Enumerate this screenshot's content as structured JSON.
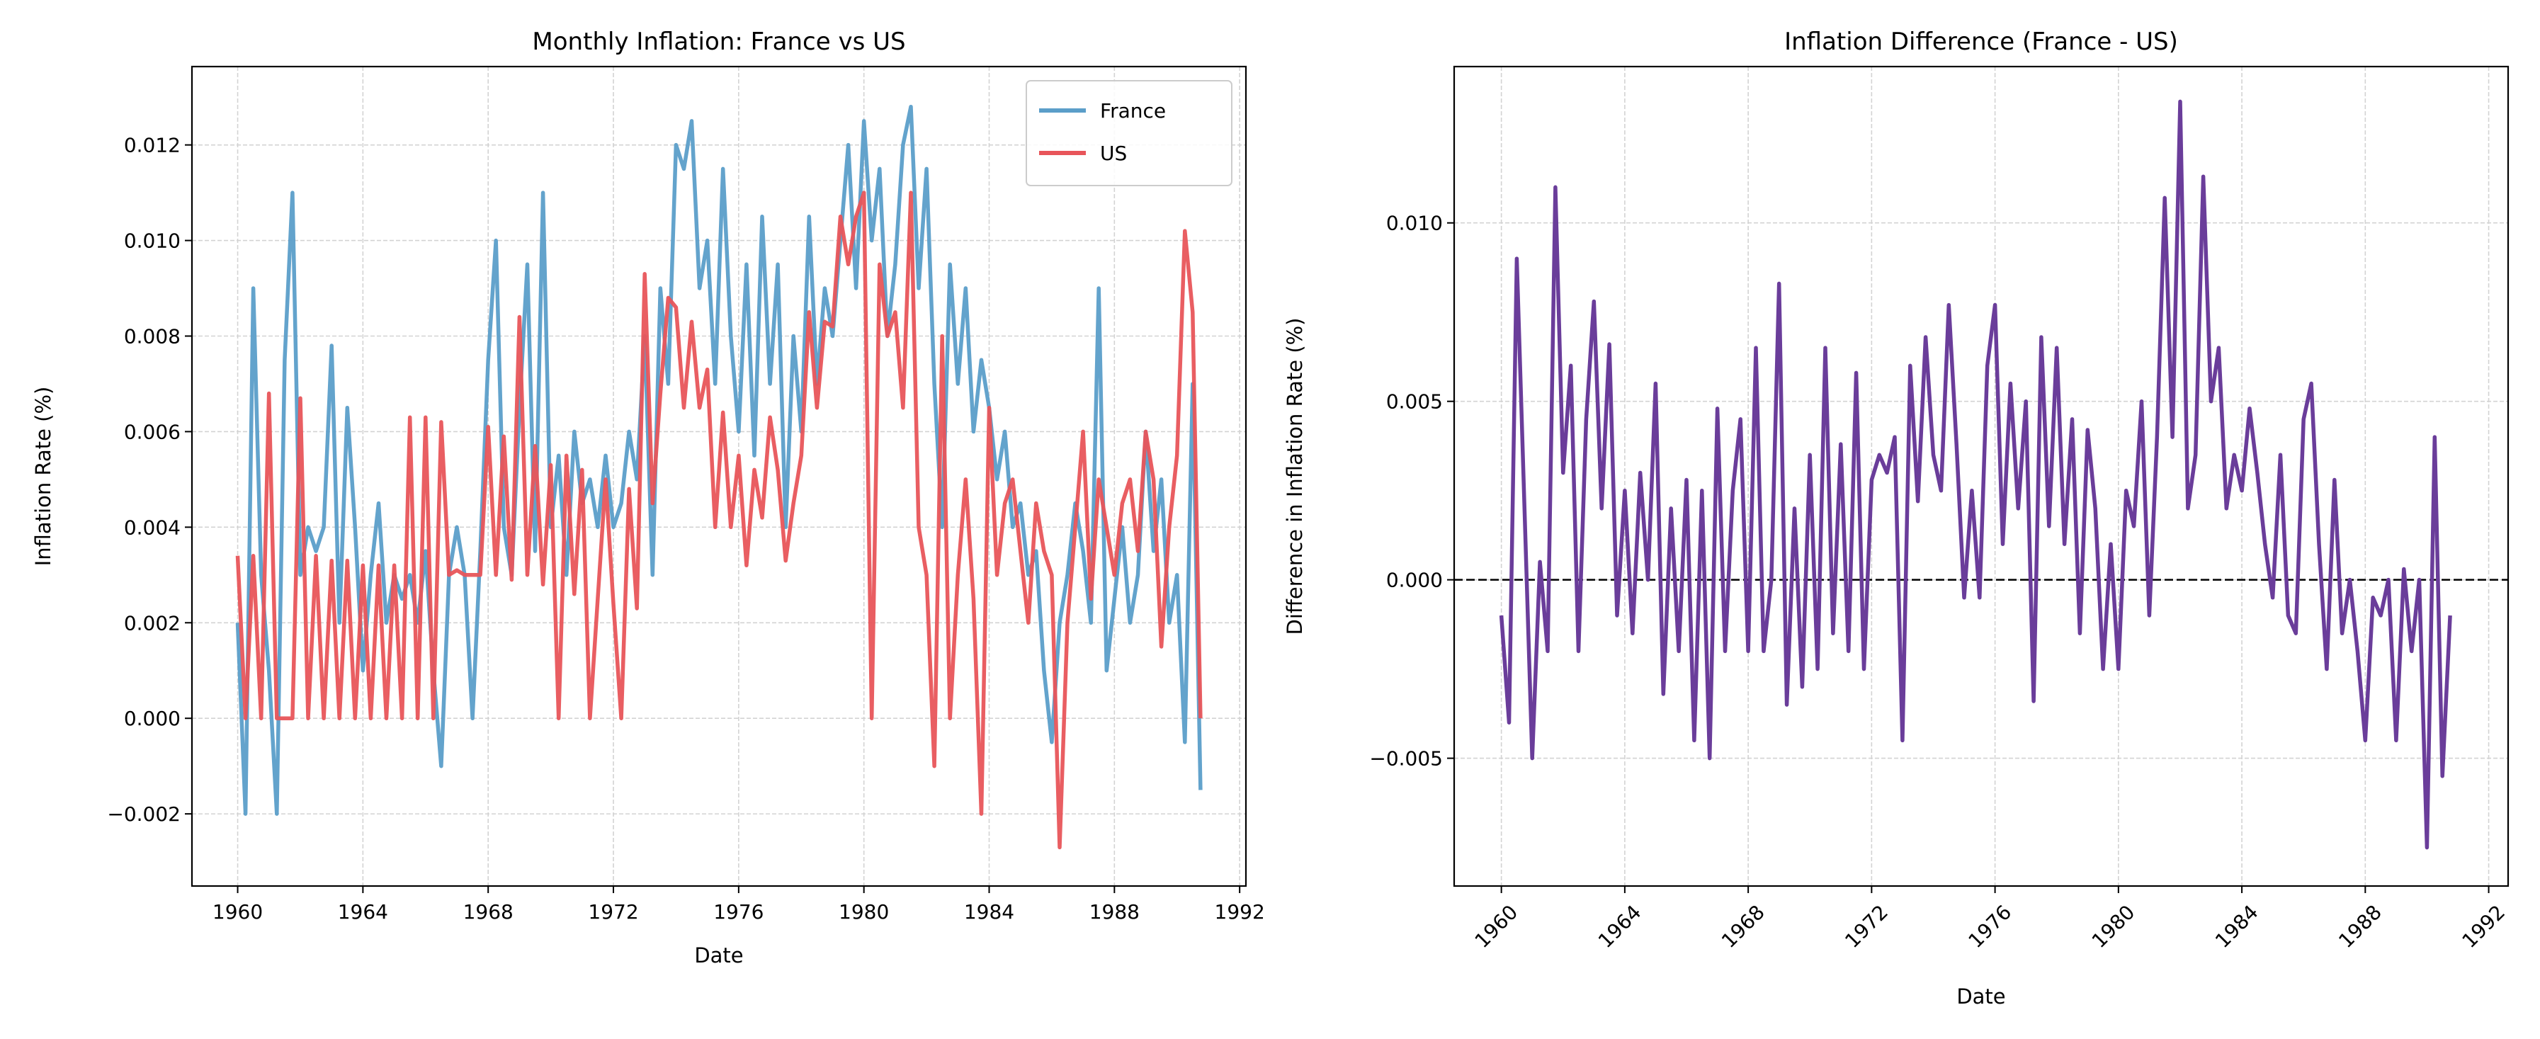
{
  "chart_data": [
    {
      "type": "line",
      "title": "Monthly Inflation: France vs US",
      "xlabel": "Date",
      "ylabel": "Inflation Rate (%)",
      "x": [
        1960,
        1960.25,
        1960.5,
        1960.75,
        1961,
        1961.25,
        1961.5,
        1961.75,
        1962,
        1962.25,
        1962.5,
        1962.75,
        1963,
        1963.25,
        1963.5,
        1963.75,
        1964,
        1964.25,
        1964.5,
        1964.75,
        1965,
        1965.25,
        1965.5,
        1965.75,
        1966,
        1966.25,
        1966.5,
        1966.75,
        1967,
        1967.25,
        1967.5,
        1967.75,
        1968,
        1968.25,
        1968.5,
        1968.75,
        1969,
        1969.25,
        1969.5,
        1969.75,
        1970,
        1970.25,
        1970.5,
        1970.75,
        1971,
        1971.25,
        1971.5,
        1971.75,
        1972,
        1972.25,
        1972.5,
        1972.75,
        1973,
        1973.25,
        1973.5,
        1973.75,
        1974,
        1974.25,
        1974.5,
        1974.75,
        1975,
        1975.25,
        1975.5,
        1975.75,
        1976,
        1976.25,
        1976.5,
        1976.75,
        1977,
        1977.25,
        1977.5,
        1977.75,
        1978,
        1978.25,
        1978.5,
        1978.75,
        1979,
        1979.25,
        1979.5,
        1979.75,
        1980,
        1980.25,
        1980.5,
        1980.75,
        1981,
        1981.25,
        1981.5,
        1981.75,
        1982,
        1982.25,
        1982.5,
        1982.75,
        1983,
        1983.25,
        1983.5,
        1983.75,
        1984,
        1984.25,
        1984.5,
        1984.75,
        1985,
        1985.25,
        1985.5,
        1985.75,
        1986,
        1986.25,
        1986.5,
        1986.75,
        1987,
        1987.25,
        1987.5,
        1987.75,
        1988,
        1988.25,
        1988.5,
        1988.75,
        1989,
        1989.25,
        1989.5,
        1989.75,
        1990,
        1990.25,
        1990.5,
        1990.75
      ],
      "series": [
        {
          "name": "France",
          "color": "#5b9ec9",
          "values": [
            0.002,
            -0.002,
            0.009,
            0.003,
            0.001,
            -0.002,
            0.0075,
            0.011,
            0.003,
            0.004,
            0.0035,
            0.004,
            0.0078,
            0.002,
            0.0065,
            0.004,
            0.001,
            0.003,
            0.0045,
            0.002,
            0.003,
            0.0025,
            0.003,
            0.002,
            0.0035,
            0.001,
            -0.001,
            0.003,
            0.004,
            0.003,
            0.0,
            0.0035,
            0.0075,
            0.01,
            0.004,
            0.003,
            0.0065,
            0.0095,
            0.0035,
            0.011,
            0.004,
            0.0055,
            0.003,
            0.006,
            0.0045,
            0.005,
            0.004,
            0.0055,
            0.004,
            0.0045,
            0.006,
            0.005,
            0.008,
            0.003,
            0.009,
            0.007,
            0.012,
            0.0115,
            0.0125,
            0.009,
            0.01,
            0.007,
            0.0115,
            0.008,
            0.006,
            0.0095,
            0.0055,
            0.0105,
            0.007,
            0.0095,
            0.004,
            0.008,
            0.006,
            0.0105,
            0.007,
            0.009,
            0.008,
            0.01,
            0.012,
            0.009,
            0.0125,
            0.01,
            0.0115,
            0.008,
            0.0095,
            0.012,
            0.0128,
            0.009,
            0.0115,
            0.007,
            0.004,
            0.0095,
            0.007,
            0.009,
            0.006,
            0.0075,
            0.0065,
            0.005,
            0.006,
            0.004,
            0.0045,
            0.003,
            0.0035,
            0.001,
            -0.0005,
            0.002,
            0.003,
            0.0045,
            0.0035,
            0.002,
            0.009,
            0.001,
            0.0025,
            0.004,
            0.002,
            0.003,
            0.006,
            0.0035,
            0.005,
            0.002,
            0.003,
            -0.0005,
            0.007,
            -0.0015
          ]
        },
        {
          "name": "US",
          "color": "#e8555a",
          "values": [
            0.0034,
            0.0,
            0.0034,
            0.0,
            0.0068,
            0.0,
            0.0,
            0.0,
            0.0067,
            0.0,
            0.0034,
            0.0,
            0.0033,
            0.0,
            0.0033,
            0.0,
            0.0032,
            0.0,
            0.0032,
            0.0,
            0.0032,
            0.0,
            0.0063,
            0.0,
            0.0063,
            0.0,
            0.0062,
            0.003,
            0.0031,
            0.003,
            0.003,
            0.003,
            0.0061,
            0.003,
            0.0059,
            0.0029,
            0.0084,
            0.003,
            0.0057,
            0.0028,
            0.0053,
            0.0,
            0.0055,
            0.0026,
            0.0052,
            0.0,
            0.0025,
            0.005,
            0.0024,
            0.0,
            0.0048,
            0.0023,
            0.0093,
            0.0045,
            0.0068,
            0.0088,
            0.0086,
            0.0065,
            0.0083,
            0.0065,
            0.0073,
            0.004,
            0.0064,
            0.004,
            0.0055,
            0.0032,
            0.0052,
            0.0042,
            0.0063,
            0.0052,
            0.0033,
            0.0045,
            0.0055,
            0.0085,
            0.0065,
            0.0083,
            0.0082,
            0.0105,
            0.0095,
            0.0105,
            0.011,
            0.0,
            0.0095,
            0.008,
            0.0085,
            0.0065,
            0.011,
            0.004,
            0.003,
            -0.001,
            0.008,
            0.0,
            0.003,
            0.005,
            0.0025,
            -0.002,
            0.0065,
            0.003,
            0.0045,
            0.005,
            0.0035,
            0.002,
            0.0045,
            0.0035,
            0.003,
            -0.0027,
            0.002,
            0.004,
            0.006,
            0.0025,
            0.005,
            0.004,
            0.003,
            0.0045,
            0.005,
            0.0035,
            0.006,
            0.005,
            0.0015,
            0.004,
            0.0055,
            0.0102,
            0.0085,
            0.0
          ]
        }
      ],
      "xlim": [
        1958.54,
        1992.2
      ],
      "ylim": [
        -0.00351,
        0.01364
      ],
      "xticks": [
        1960,
        1964,
        1968,
        1972,
        1976,
        1980,
        1984,
        1988,
        1992
      ],
      "yticks": [
        {
          "value": -0.002,
          "label": "−0.002"
        },
        {
          "value": 0,
          "label": "0.000"
        },
        {
          "value": 0.002,
          "label": "0.002"
        },
        {
          "value": 0.004,
          "label": "0.004"
        },
        {
          "value": 0.006,
          "label": "0.006"
        },
        {
          "value": 0.008,
          "label": "0.008"
        },
        {
          "value": 0.01,
          "label": "0.010"
        },
        {
          "value": 0.012,
          "label": "0.012"
        }
      ],
      "grid": true,
      "legend": "upper right"
    },
    {
      "type": "line",
      "title": "Inflation Difference (France - US)",
      "xlabel": "Date",
      "ylabel": "Difference in Inflation Rate (%)",
      "x": [
        1960,
        1960.25,
        1960.5,
        1960.75,
        1961,
        1961.25,
        1961.5,
        1961.75,
        1962,
        1962.25,
        1962.5,
        1962.75,
        1963,
        1963.25,
        1963.5,
        1963.75,
        1964,
        1964.25,
        1964.5,
        1964.75,
        1965,
        1965.25,
        1965.5,
        1965.75,
        1966,
        1966.25,
        1966.5,
        1966.75,
        1967,
        1967.25,
        1967.5,
        1967.75,
        1968,
        1968.25,
        1968.5,
        1968.75,
        1969,
        1969.25,
        1969.5,
        1969.75,
        1970,
        1970.25,
        1970.5,
        1970.75,
        1971,
        1971.25,
        1971.5,
        1971.75,
        1972,
        1972.25,
        1972.5,
        1972.75,
        1973,
        1973.25,
        1973.5,
        1973.75,
        1974,
        1974.25,
        1974.5,
        1974.75,
        1975,
        1975.25,
        1975.5,
        1975.75,
        1976,
        1976.25,
        1976.5,
        1976.75,
        1977,
        1977.25,
        1977.5,
        1977.75,
        1978,
        1978.25,
        1978.5,
        1978.75,
        1979,
        1979.25,
        1979.5,
        1979.75,
        1980,
        1980.25,
        1980.5,
        1980.75,
        1981,
        1981.25,
        1981.5,
        1981.75,
        1982,
        1982.25,
        1982.5,
        1982.75,
        1983,
        1983.25,
        1983.5,
        1983.75,
        1984,
        1984.25,
        1984.5,
        1984.75,
        1985,
        1985.25,
        1985.5,
        1985.75,
        1986,
        1986.25,
        1986.5,
        1986.75,
        1987,
        1987.25,
        1987.5,
        1987.75,
        1988,
        1988.25,
        1988.5,
        1988.75,
        1989,
        1989.25,
        1989.5,
        1989.75,
        1990,
        1990.25,
        1990.5,
        1990.75
      ],
      "series": [
        {
          "name": "France - US",
          "color": "#6a3d9a",
          "values": [
            -0.001,
            -0.004,
            0.009,
            0.002,
            -0.005,
            0.0005,
            -0.002,
            0.011,
            0.003,
            0.006,
            -0.002,
            0.0045,
            0.0078,
            0.002,
            0.0066,
            -0.001,
            0.0025,
            -0.0015,
            0.003,
            0.0,
            0.0055,
            -0.0032,
            0.002,
            -0.002,
            0.0028,
            -0.0045,
            0.0025,
            -0.005,
            0.0048,
            -0.002,
            0.0025,
            0.0045,
            -0.002,
            0.0065,
            -0.002,
            0.0,
            0.0083,
            -0.0035,
            0.002,
            -0.003,
            0.0035,
            -0.0025,
            0.0065,
            -0.0015,
            0.0038,
            -0.002,
            0.0058,
            -0.0025,
            0.0028,
            0.0035,
            0.003,
            0.004,
            -0.0045,
            0.006,
            0.0022,
            0.0068,
            0.0035,
            0.0025,
            0.0077,
            0.0038,
            -0.0005,
            0.0025,
            -0.0005,
            0.006,
            0.0077,
            0.001,
            0.0055,
            0.002,
            0.005,
            -0.0034,
            0.0068,
            0.0015,
            0.0065,
            0.001,
            0.0045,
            -0.0015,
            0.0042,
            0.002,
            -0.0025,
            0.001,
            -0.0025,
            0.0025,
            0.0015,
            0.005,
            -0.001,
            0.004,
            0.0107,
            0.004,
            0.0134,
            0.002,
            0.0035,
            0.0113,
            0.005,
            0.0065,
            0.002,
            0.0035,
            0.0025,
            0.0048,
            0.003,
            0.001,
            -0.0005,
            0.0035,
            -0.001,
            -0.0015,
            0.0045,
            0.0055,
            0.001,
            -0.0025,
            0.0028,
            -0.0015,
            0.0,
            -0.002,
            -0.0045,
            -0.0005,
            -0.001,
            0.0,
            -0.0045,
            0.0003,
            -0.002,
            0.0,
            -0.0075,
            0.004,
            -0.0055,
            -0.001
          ]
        }
      ],
      "xlim": [
        1958.47,
        1992.63
      ],
      "ylim": [
        -0.00858,
        0.01438
      ],
      "xticks": [
        1960,
        1964,
        1968,
        1972,
        1976,
        1980,
        1984,
        1988,
        1992
      ],
      "yticks": [
        {
          "value": -0.005,
          "label": "−0.005"
        },
        {
          "value": 0,
          "label": "0.000"
        },
        {
          "value": 0.005,
          "label": "0.005"
        },
        {
          "value": 0.01,
          "label": "0.010"
        }
      ],
      "grid": true,
      "hline": 0,
      "xtick_rotation": 45
    }
  ]
}
